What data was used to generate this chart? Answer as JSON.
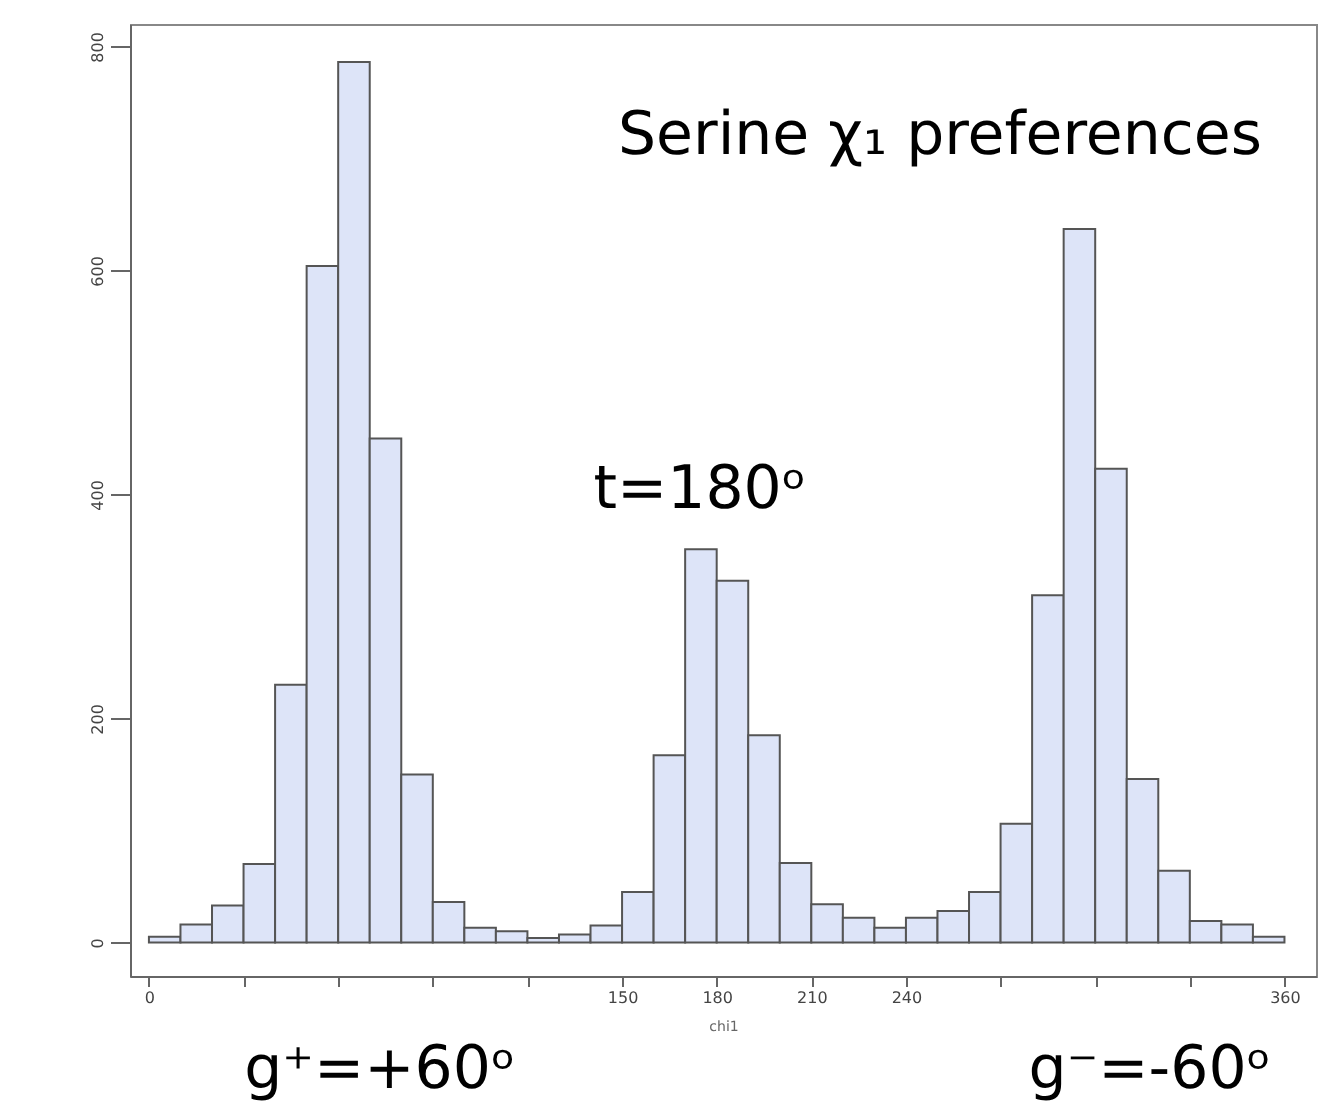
{
  "chart_data": {
    "type": "histogram",
    "xlabel": "chi1",
    "bins": [
      0,
      10,
      20,
      30,
      40,
      50,
      60,
      70,
      80,
      90,
      100,
      110,
      120,
      130,
      140,
      150,
      160,
      170,
      180,
      190,
      200,
      210,
      220,
      230,
      240,
      250,
      260,
      270,
      280,
      290,
      300,
      310,
      320,
      330,
      340,
      350,
      360
    ],
    "values": [
      5,
      16,
      33,
      70,
      230,
      604,
      786,
      450,
      150,
      36,
      13,
      10,
      4,
      7,
      15,
      45,
      167,
      351,
      323,
      185,
      71,
      34,
      22,
      13,
      22,
      28,
      45,
      106,
      310,
      637,
      423,
      146,
      64,
      19,
      16,
      5
    ],
    "color": "#dde4f8",
    "xlim": [
      -6,
      370
    ],
    "xticks": [
      0,
      {
        "value": 30,
        "label": null
      },
      {
        "value": 60,
        "label": null
      },
      {
        "value": 90,
        "label": null
      },
      {
        "value": 120,
        "label": null
      },
      150,
      180,
      210,
      240,
      {
        "value": 270,
        "label": null
      },
      {
        "value": 300,
        "label": null
      },
      {
        "value": 330,
        "label": null
      },
      360
    ],
    "ylim": [
      -30,
      820
    ],
    "yticks": [
      0,
      200,
      400,
      600,
      800
    ],
    "annotations": [
      "Serine χ₁ preferences",
      "t=180ᵒ",
      "g⁺=+60ᵒ",
      "g⁻=-60ᵒ"
    ]
  }
}
